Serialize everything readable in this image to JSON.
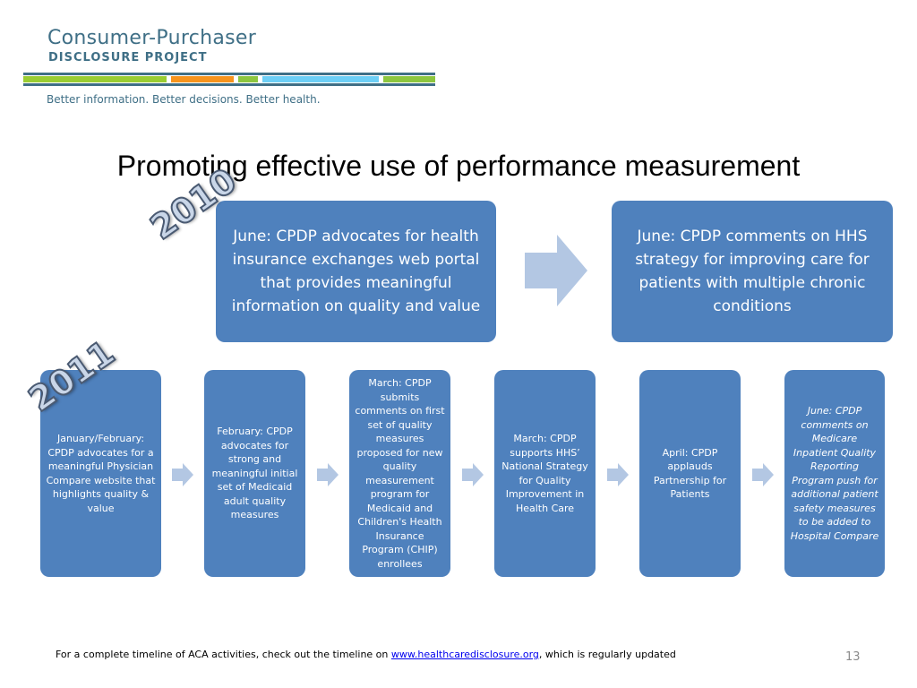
{
  "logo": {
    "title": "Consumer-Purchaser",
    "subtitle": "DISCLOSURE PROJECT",
    "tagline": "Better information. Better decisions. Better health.",
    "colors": [
      "#9acd32",
      "#f7941d",
      "#8dc63f",
      "#6dcff6",
      "#3f6f86"
    ]
  },
  "slide": {
    "title": "Promoting effective use of performance measurement"
  },
  "years": {
    "y2010": "2010",
    "y2011": "2011"
  },
  "row2010": [
    {
      "text": "June: CPDP advocates for health insurance exchanges web portal that provides meaningful information on quality and value"
    },
    {
      "text": "June: CPDP comments on HHS strategy for improving care for patients with multiple chronic conditions"
    }
  ],
  "row2011": [
    {
      "text": "January/February: CPDP advocates for a meaningful Physician Compare website that highlights quality & value"
    },
    {
      "text": "February: CPDP advocates for strong and meaningful initial set of Medicaid adult quality measures"
    },
    {
      "text": "March: CPDP submits comments on first set of quality measures proposed for new quality measurement program for Medicaid and Children's Health Insurance Program (CHIP) enrollees"
    },
    {
      "text": "March: CPDP supports HHS’ National Strategy for Quality Improvement in Health Care"
    },
    {
      "text": "April: CPDP applauds Partnership for Patients"
    },
    {
      "text": "June: CPDP comments on Medicare Inpatient Quality Reporting Program push for additional patient safety measures to be added to Hospital Compare"
    }
  ],
  "footer": {
    "before_link": "For a complete timeline of ACA activities, check out the timeline on ",
    "link": "www.healthcaredisclosure.org",
    "after_link": ", which is regularly updated",
    "page_number": "13"
  },
  "colors": {
    "box": "#4f81bd",
    "arrow": "#b3c7e3"
  }
}
